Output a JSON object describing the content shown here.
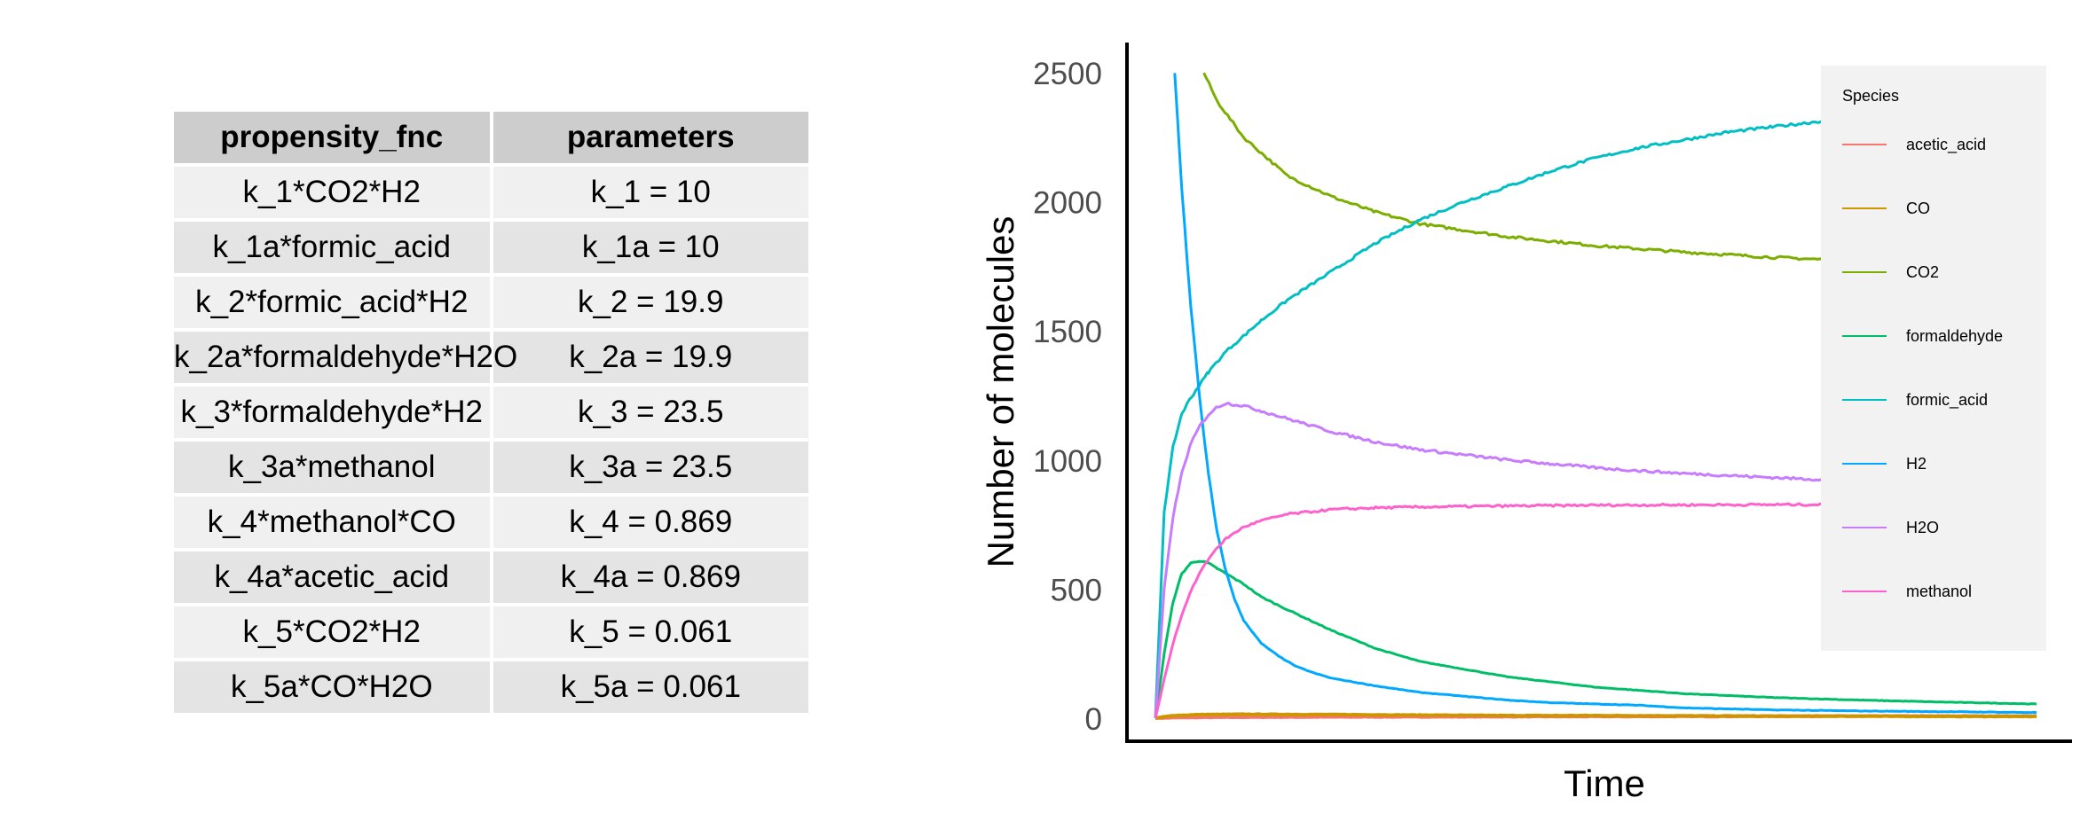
{
  "table": {
    "headers": [
      "propensity_fnc",
      "parameters"
    ],
    "rows": [
      [
        "k_1*CO2*H2",
        "k_1 = 10"
      ],
      [
        "k_1a*formic_acid",
        "k_1a = 10"
      ],
      [
        "k_2*formic_acid*H2",
        "k_2 = 19.9"
      ],
      [
        "k_2a*formaldehyde*H2O",
        "k_2a = 19.9"
      ],
      [
        "k_3*formaldehyde*H2",
        "k_3 = 23.5"
      ],
      [
        "k_3a*methanol",
        "k_3a = 23.5"
      ],
      [
        "k_4*methanol*CO",
        "k_4 = 0.869"
      ],
      [
        "k_4a*acetic_acid",
        "k_4a = 0.869"
      ],
      [
        "k_5*CO2*H2",
        "k_5 = 0.061"
      ],
      [
        "k_5a*CO*H2O",
        "k_5a = 0.061"
      ]
    ]
  },
  "chart_data": {
    "type": "line",
    "xlabel": "Time",
    "ylabel": "Number of molecules",
    "xlim": [
      0,
      100
    ],
    "ylim": [
      -50,
      2620
    ],
    "yticks": [
      0,
      500,
      1000,
      1500,
      2000,
      2500
    ],
    "ytick_labels": [
      "0",
      "500",
      "1000",
      "1500",
      "2000",
      "2500"
    ],
    "grid": false,
    "legend": {
      "title": "Species",
      "position": "right"
    },
    "series": [
      {
        "name": "acetic_acid",
        "color": "#F8766D",
        "x": [
          0,
          1,
          2,
          5,
          10,
          20,
          40,
          60,
          80,
          100
        ],
        "y": [
          0,
          1,
          2,
          3,
          4,
          5,
          6,
          7,
          8,
          8
        ]
      },
      {
        "name": "CO",
        "color": "#CD9600",
        "x": [
          0,
          2,
          5,
          10,
          20,
          30,
          40,
          50,
          60,
          70,
          80,
          90,
          100
        ],
        "y": [
          0,
          10,
          14,
          15,
          14,
          12,
          10,
          10,
          9,
          8,
          8,
          7,
          7
        ]
      },
      {
        "name": "CO2",
        "color": "#7CAE00",
        "x": [
          5.5,
          7,
          10,
          15,
          20,
          25,
          30,
          40,
          50,
          60,
          70,
          80,
          90,
          95
        ],
        "y": [
          2500,
          2390,
          2250,
          2100,
          2020,
          1960,
          1915,
          1865,
          1830,
          1805,
          1785,
          1770,
          1755,
          1752
        ]
      },
      {
        "name": "formaldehyde",
        "color": "#00BE67",
        "x": [
          0,
          1,
          2,
          3,
          4,
          5,
          6,
          7,
          8,
          10,
          12,
          15,
          20,
          25,
          30,
          40,
          50,
          60,
          70,
          80,
          90,
          100
        ],
        "y": [
          0,
          250,
          450,
          560,
          600,
          610,
          600,
          580,
          560,
          520,
          470,
          420,
          340,
          270,
          220,
          160,
          120,
          95,
          80,
          70,
          62,
          55
        ]
      },
      {
        "name": "formic_acid",
        "color": "#00BFC4",
        "x": [
          0,
          1,
          2,
          3,
          4,
          5,
          6,
          8,
          10,
          12,
          15,
          20,
          25,
          30,
          35,
          40,
          45,
          50,
          55,
          60,
          65,
          70,
          75,
          80,
          85,
          90
        ],
        "y": [
          0,
          800,
          1050,
          1180,
          1240,
          1290,
          1340,
          1420,
          1480,
          1540,
          1620,
          1730,
          1840,
          1930,
          2000,
          2060,
          2120,
          2170,
          2210,
          2240,
          2270,
          2290,
          2310,
          2330,
          2345,
          2350
        ]
      },
      {
        "name": "H2",
        "color": "#00A9FF",
        "x": [
          2.2,
          3,
          4,
          5,
          6,
          7,
          8,
          9,
          10,
          12,
          14,
          16,
          18,
          20,
          25,
          30,
          35,
          40,
          45,
          50,
          55,
          60,
          70,
          80,
          90,
          100
        ],
        "y": [
          2500,
          2050,
          1600,
          1250,
          950,
          720,
          570,
          460,
          380,
          290,
          240,
          200,
          175,
          155,
          125,
          100,
          85,
          70,
          60,
          55,
          50,
          40,
          32,
          28,
          25,
          22
        ]
      },
      {
        "name": "H2O",
        "color": "#C77CFF",
        "x": [
          0,
          1,
          2,
          3,
          4,
          5,
          6,
          7,
          8,
          10,
          12,
          15,
          20,
          25,
          30,
          35,
          40,
          45,
          50,
          55,
          60,
          65,
          70,
          75,
          80,
          85,
          90
        ],
        "y": [
          0,
          500,
          780,
          950,
          1060,
          1130,
          1175,
          1205,
          1220,
          1210,
          1190,
          1160,
          1110,
          1070,
          1040,
          1020,
          1000,
          985,
          970,
          958,
          948,
          940,
          932,
          925,
          918,
          912,
          910
        ]
      },
      {
        "name": "methanol",
        "color": "#FF61CC",
        "x": [
          0,
          1,
          2,
          3,
          4,
          5,
          6,
          7,
          8,
          10,
          12,
          15,
          20,
          25,
          30,
          40,
          50,
          60,
          70,
          80,
          90
        ],
        "y": [
          0,
          150,
          290,
          400,
          490,
          560,
          615,
          660,
          695,
          740,
          765,
          790,
          808,
          815,
          818,
          822,
          825,
          826,
          827,
          828,
          828
        ]
      }
    ]
  }
}
